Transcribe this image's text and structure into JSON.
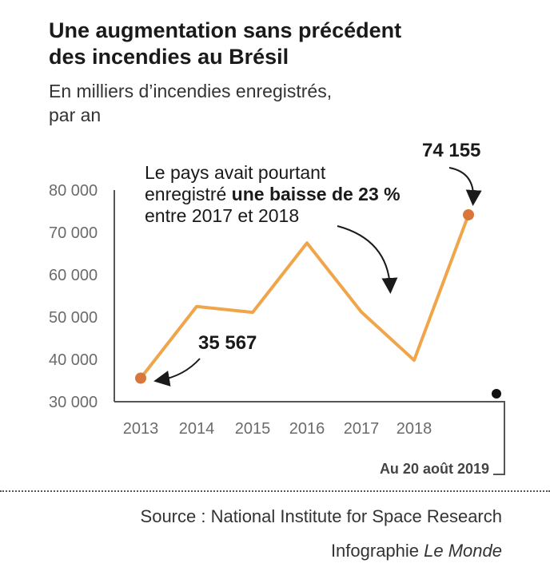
{
  "header": {
    "title_line1": "Une augmentation sans précédent",
    "title_line2": "des incendies au Brésil",
    "subtitle_line1": "En milliers d’incendies enregistrés,",
    "subtitle_line2": "par an"
  },
  "footer": {
    "source": "Source : National Institute for Space Research",
    "credit_prefix": "Infographie ",
    "credit_brand": "Le Monde"
  },
  "colors": {
    "line": "#f0a54a",
    "endpoint": "#d9773a",
    "axis": "#555555",
    "tick_text": "#6b6b6b",
    "annotation": "#1a1a1a",
    "marker": "#111111"
  },
  "chart_data": {
    "type": "line",
    "x": [
      "2013",
      "2014",
      "2015",
      "2016",
      "2017",
      "2018",
      "Au 20 août 2019"
    ],
    "values": [
      35567,
      52500,
      51100,
      67500,
      51200,
      39800,
      74155
    ],
    "ylim": [
      30000,
      80000
    ],
    "yticks": [
      30000,
      40000,
      50000,
      60000,
      70000,
      80000
    ],
    "ytick_labels": [
      "30 000",
      "40 000",
      "50 000",
      "60 000",
      "70 000",
      "80 000"
    ],
    "xtick_labels": [
      "2013",
      "2014",
      "2015",
      "2016",
      "2017",
      "2018"
    ],
    "last_point_label": "Au 20 août 2019",
    "annotations": {
      "start_value": "35 567",
      "end_value": "74 155",
      "note_line1": "Le pays avait pourtant",
      "note_line2_plain": "enregistré ",
      "note_line2_bold": "une baisse de 23 %",
      "note_line3": "entre 2017 et 2018"
    }
  }
}
